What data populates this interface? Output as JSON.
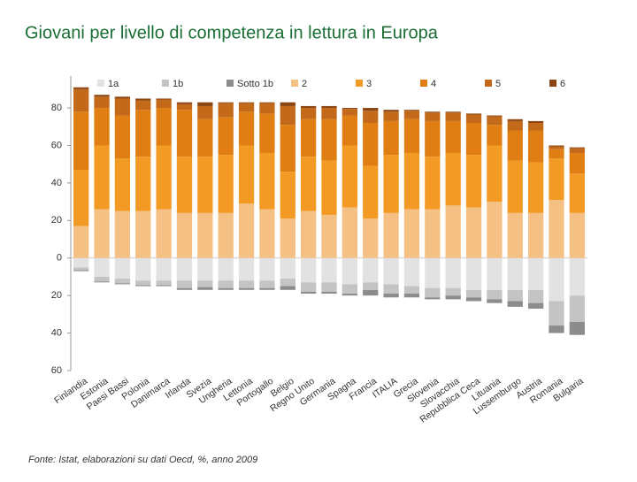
{
  "chart_data": {
    "type": "diverging-stacked-bar",
    "title": "Giovani per livello di competenza in lettura in Europa",
    "note": "Fonte: Istat, elaborazioni su dati Oecd, %, anno 2009",
    "categories": [
      "Finlandia",
      "Estonia",
      "Paesi Bassi",
      "Polonia",
      "Danimarca",
      "Irlanda",
      "Svezia",
      "Ungheria",
      "Lettonia",
      "Portogallo",
      "Belgio",
      "Regno Unito",
      "Germania",
      "Spagna",
      "Francia",
      "ITALIA",
      "Grecia",
      "Slovenia",
      "Slovacchia",
      "Repubblica Ceca",
      "Lituania",
      "Lussemburgo",
      "Austria",
      "Romania",
      "Bulgaria"
    ],
    "series": [
      {
        "name": "1a",
        "color": "#e2e2e2",
        "values": [
          -5,
          -10,
          -11,
          -12,
          -12,
          -12,
          -12,
          -12,
          -12,
          -12,
          -11,
          -13,
          -13,
          -14,
          -13,
          -14,
          -15,
          -16,
          -16,
          -17,
          -17,
          -17,
          -17,
          -23,
          -20
        ]
      },
      {
        "name": "1b",
        "color": "#c4c4c4",
        "values": [
          -1.5,
          -2.5,
          -2.5,
          -2.5,
          -2.5,
          -4,
          -3.5,
          -4,
          -4,
          -4,
          -4,
          -5,
          -5,
          -5,
          -4,
          -5,
          -4,
          -5,
          -4,
          -4,
          -5,
          -6,
          -7,
          -13,
          -14
        ]
      },
      {
        "name": "Sotto 1b",
        "color": "#8c8c8c",
        "values": [
          -0.5,
          -0.5,
          -0.5,
          -0.5,
          -0.5,
          -1,
          -1.5,
          -1,
          -1,
          -1,
          -2,
          -1,
          -1,
          -1,
          -3,
          -2,
          -2,
          -1,
          -2,
          -2,
          -2,
          -3,
          -3,
          -4,
          -7
        ]
      },
      {
        "name": "2",
        "color": "#f4c083",
        "values": [
          17,
          26,
          25,
          25,
          26,
          24,
          24,
          24,
          29,
          26,
          21,
          25,
          23,
          27,
          21,
          24,
          26,
          26,
          28,
          27,
          30,
          24,
          24,
          31,
          24
        ]
      },
      {
        "name": "3",
        "color": "#f39a25",
        "values": [
          30,
          34,
          28,
          29,
          34,
          30,
          30,
          31,
          31,
          30,
          25,
          29,
          29,
          33,
          28,
          31,
          30,
          28,
          28,
          28,
          30,
          28,
          27,
          22,
          21
        ]
      },
      {
        "name": "4",
        "color": "#e07e14",
        "values": [
          31,
          20,
          23,
          25,
          20,
          25,
          20,
          20,
          18,
          21,
          25,
          20,
          22,
          16,
          23,
          18,
          18,
          19,
          17,
          17,
          11,
          16,
          17,
          5,
          11
        ]
      },
      {
        "name": "5",
        "color": "#c3691a",
        "values": [
          12,
          6,
          9,
          5,
          4.5,
          3,
          7,
          7.5,
          4.5,
          5.5,
          10,
          6,
          6,
          3.5,
          6.5,
          5,
          4.5,
          4.5,
          4.5,
          4.5,
          4.5,
          5,
          4,
          1.5,
          2.5
        ]
      },
      {
        "name": "6",
        "color": "#8b4513",
        "values": [
          1,
          1,
          1,
          1,
          0.5,
          1,
          2,
          0.5,
          0.5,
          0.5,
          2,
          1,
          1,
          0.5,
          1.5,
          1,
          0.5,
          0.5,
          0.5,
          0.5,
          0.5,
          1,
          1,
          0.5,
          0.5
        ]
      }
    ],
    "ylim": [
      -60,
      97
    ],
    "yticks": [
      {
        "value": -60,
        "label": "60"
      },
      {
        "value": -40,
        "label": "40"
      },
      {
        "value": -20,
        "label": "20"
      },
      0,
      20,
      40,
      60,
      80
    ]
  }
}
